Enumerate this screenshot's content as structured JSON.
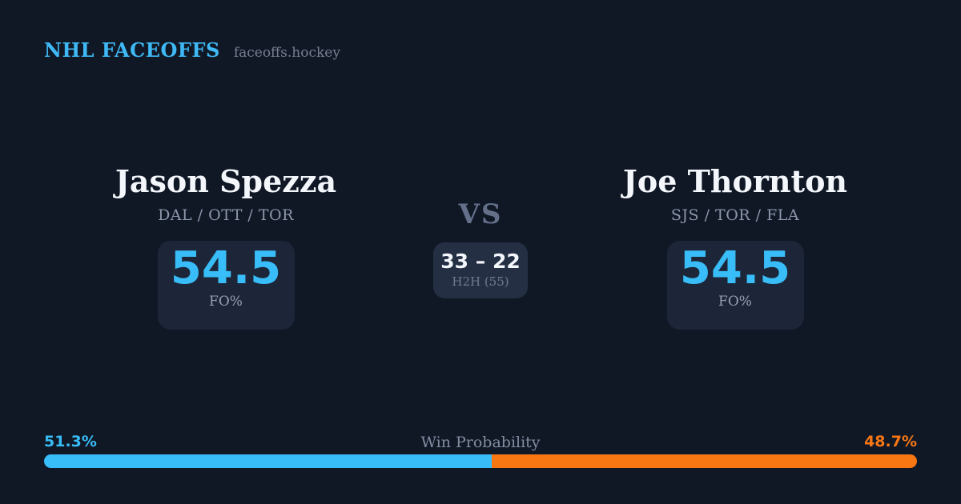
{
  "brand": {
    "title": "NHL FACEOFFS",
    "site": "faceoffs.hockey"
  },
  "players": {
    "left": {
      "name": "Jason Spezza",
      "teams": "DAL / OTT / TOR",
      "stat_value": "54.5",
      "stat_label": "FO%"
    },
    "right": {
      "name": "Joe Thornton",
      "teams": "SJS / TOR / FLA",
      "stat_value": "54.5",
      "stat_label": "FO%"
    }
  },
  "matchup": {
    "vs_label": "VS",
    "h2h_score": "33 – 22",
    "h2h_label": "H2H (55)"
  },
  "win_probability": {
    "title": "Win Probability",
    "left_pct": "51.3%",
    "right_pct": "48.7%",
    "left_value": 51.3,
    "right_value": 48.7
  },
  "colors": {
    "background": "#101826",
    "stat_card": "#1d2638",
    "h2h_card": "#242f44",
    "accent_blue": "#38bdf8",
    "accent_orange": "#f97713",
    "text_primary": "#f3f6fa",
    "text_muted": "#8b96aa",
    "vs_text": "#64708a"
  },
  "chart_data": {
    "type": "bar",
    "title": "Win Probability",
    "categories": [
      "Jason Spezza",
      "Joe Thornton"
    ],
    "values": [
      51.3,
      48.7
    ],
    "unit": "%",
    "orientation": "horizontal-stacked",
    "colors": [
      "#38bdf8",
      "#f97713"
    ],
    "value_labels": [
      "51.3%",
      "48.7%"
    ],
    "legend_position": "none",
    "grid": false
  }
}
